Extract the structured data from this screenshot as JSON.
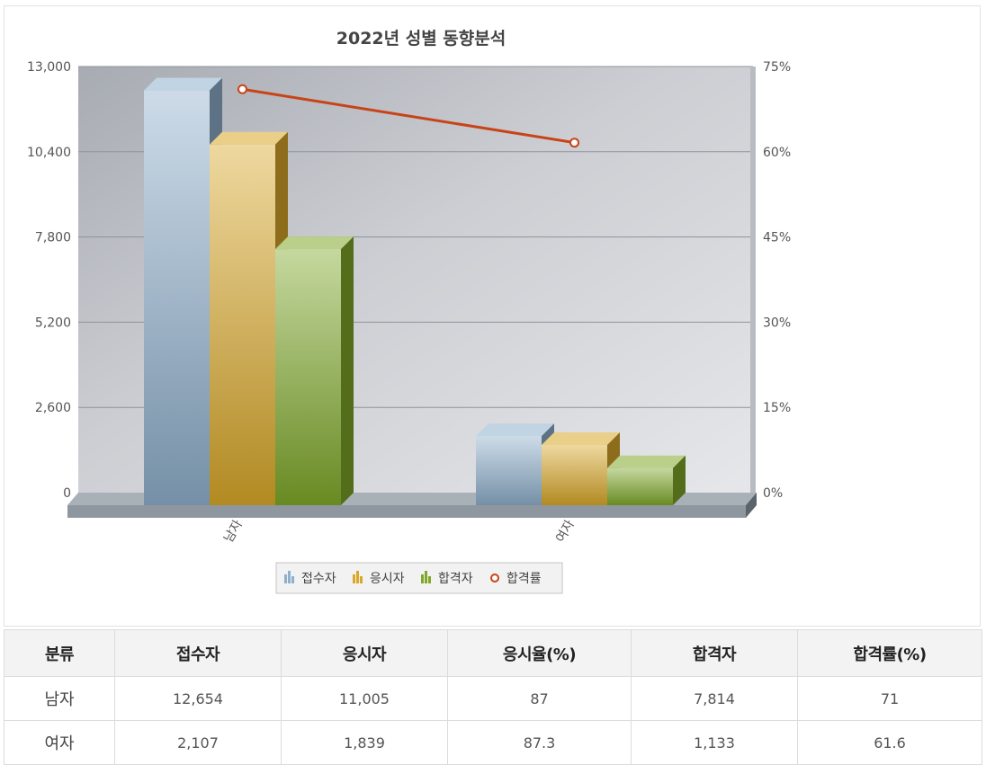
{
  "chart_data": {
    "type": "bar",
    "title": "2022년 성별 동향분석",
    "categories": [
      "남자",
      "여자"
    ],
    "series": [
      {
        "name": "접수자",
        "values": [
          12654,
          2107
        ],
        "color": "#8fb0cc",
        "axis": "left"
      },
      {
        "name": "응시자",
        "values": [
          11005,
          1839
        ],
        "color": "#d9a829",
        "axis": "left"
      },
      {
        "name": "합격자",
        "values": [
          7814,
          1133
        ],
        "color": "#7fa82a",
        "axis": "left"
      },
      {
        "name": "합격률",
        "values": [
          71,
          61.6
        ],
        "color": "#c84418",
        "type": "line",
        "axis": "right"
      }
    ],
    "ylim": [
      0,
      13000
    ],
    "y_ticks": [
      "0",
      "2,600",
      "5,200",
      "7,800",
      "10,400",
      "13,000"
    ],
    "y2lim": [
      0,
      75
    ],
    "y2_ticks": [
      "0%",
      "15%",
      "30%",
      "45%",
      "60%",
      "75%"
    ],
    "grid": true,
    "legend_position": "bottom"
  },
  "table": {
    "headers": [
      "분류",
      "접수자",
      "응시자",
      "응시율(%)",
      "합격자",
      "합격률(%)"
    ],
    "rows": [
      [
        "남자",
        "12,654",
        "11,005",
        "87",
        "7,814",
        "71"
      ],
      [
        "여자",
        "2,107",
        "1,839",
        "87.3",
        "1,133",
        "61.6"
      ]
    ]
  }
}
